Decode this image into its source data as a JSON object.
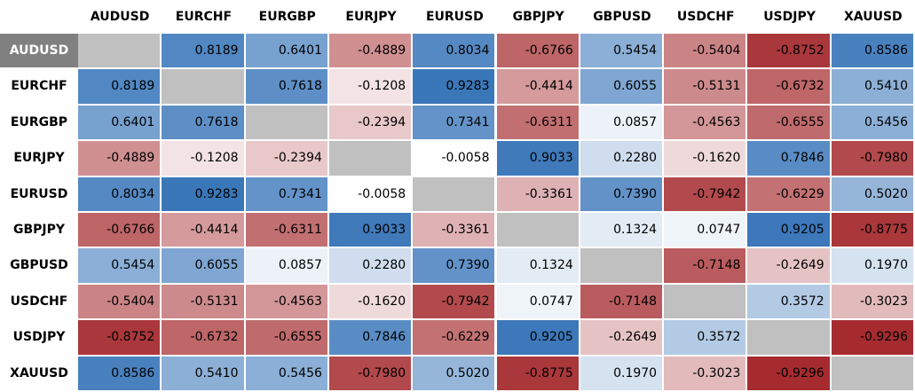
{
  "chart_data": {
    "type": "heatmap",
    "title": "",
    "row_labels": [
      "AUDUSD",
      "EURCHF",
      "EURGBP",
      "EURJPY",
      "EURUSD",
      "GBPJPY",
      "GBPUSD",
      "USDCHF",
      "USDJPY",
      "XAUUSD"
    ],
    "col_labels": [
      "AUDUSD",
      "EURCHF",
      "EURGBP",
      "EURJPY",
      "EURUSD",
      "GBPJPY",
      "GBPUSD",
      "USDCHF",
      "USDJPY",
      "XAUUSD"
    ],
    "highlighted_row": "AUDUSD",
    "values": [
      [
        null,
        0.8189,
        0.6401,
        -0.4889,
        0.8034,
        -0.6766,
        0.5454,
        -0.5404,
        -0.8752,
        0.8586
      ],
      [
        0.8189,
        null,
        0.7618,
        -0.1208,
        0.9283,
        -0.4414,
        0.6055,
        -0.5131,
        -0.6732,
        0.541
      ],
      [
        0.6401,
        0.7618,
        null,
        -0.2394,
        0.7341,
        -0.6311,
        0.0857,
        -0.4563,
        -0.6555,
        0.5456
      ],
      [
        -0.4889,
        -0.1208,
        -0.2394,
        null,
        -0.0058,
        0.9033,
        0.228,
        -0.162,
        0.7846,
        -0.798
      ],
      [
        0.8034,
        0.9283,
        0.7341,
        -0.0058,
        null,
        -0.3361,
        0.739,
        -0.7942,
        -0.6229,
        0.502
      ],
      [
        -0.6766,
        -0.4414,
        -0.6311,
        0.9033,
        -0.3361,
        null,
        0.1324,
        0.0747,
        0.9205,
        -0.8775
      ],
      [
        0.5454,
        0.6055,
        0.0857,
        0.228,
        0.739,
        0.1324,
        null,
        -0.7148,
        -0.2649,
        0.197
      ],
      [
        -0.5404,
        -0.5131,
        -0.4563,
        -0.162,
        -0.7942,
        0.0747,
        -0.7148,
        null,
        0.3572,
        -0.3023
      ],
      [
        -0.8752,
        -0.6732,
        -0.6555,
        0.7846,
        -0.6229,
        0.9205,
        -0.2649,
        0.3572,
        null,
        -0.9296
      ],
      [
        0.8586,
        0.541,
        0.5456,
        -0.798,
        0.502,
        -0.8775,
        0.197,
        -0.3023,
        -0.9296,
        null
      ]
    ],
    "colors": {
      "positive": "#2b6cb4",
      "negative": "#9e1b1f",
      "neutral": "#ffffff",
      "diagonal": "#c0c0c0",
      "highlight_header": "#808080"
    }
  }
}
